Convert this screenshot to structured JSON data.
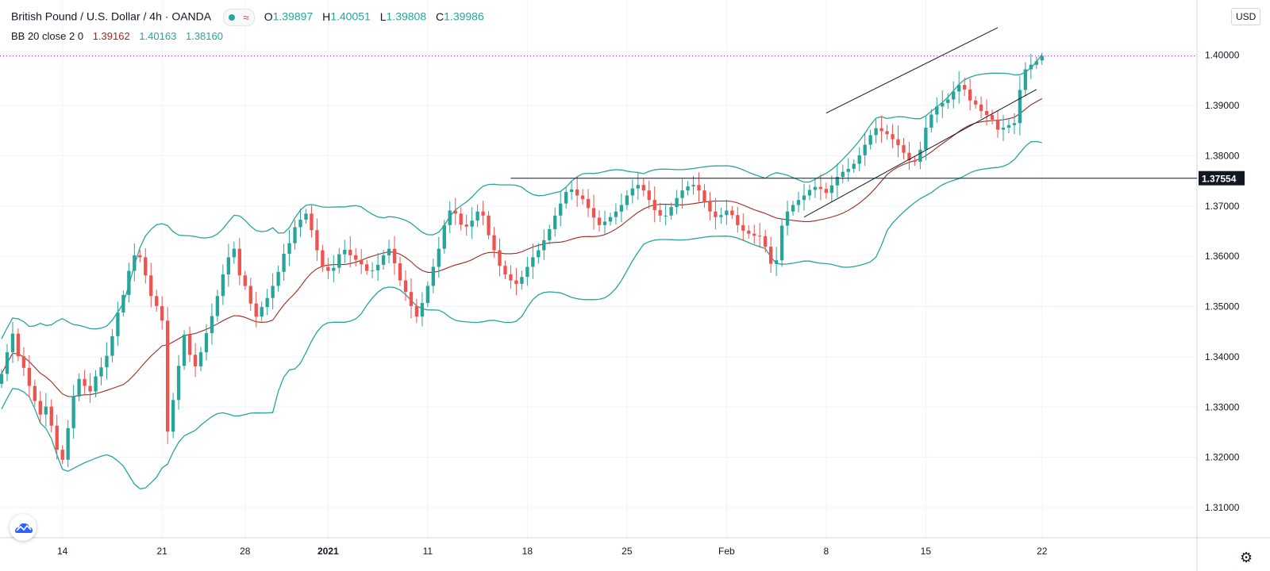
{
  "header": {
    "symbol": "British Pound / U.S. Dollar",
    "interval": "4h",
    "exchange": "OANDA",
    "open_label": "O",
    "open": "1.39897",
    "high_label": "H",
    "high": "1.40051",
    "low_label": "L",
    "low": "1.39808",
    "close_label": "C",
    "close": "1.39986"
  },
  "indicator": {
    "name": "BB 20 close 2 0",
    "basis": "1.39162",
    "upper": "1.40163",
    "lower": "1.38160"
  },
  "currency_label": "USD",
  "colors": {
    "up": "#26a69a",
    "down": "#ef5350",
    "bb_band": "#26a69a",
    "bb_basis": "#9c2b1a",
    "trendline": "#131722",
    "last_price_line": "#9c27b0"
  },
  "chart_data": {
    "type": "candlestick",
    "title": "British Pound / U.S. Dollar · 4h · OANDA",
    "ylim": [
      1.304,
      1.411
    ],
    "price_ticks": [
      "1.31000",
      "1.32000",
      "1.33000",
      "1.34000",
      "1.35000",
      "1.36000",
      "1.37000",
      "1.38000",
      "1.39000",
      "1.40000"
    ],
    "price_tick_values": [
      1.31,
      1.32,
      1.33,
      1.34,
      1.35,
      1.36,
      1.37,
      1.38,
      1.39,
      1.4
    ],
    "x_range_index": [
      0,
      216
    ],
    "time_ticks": [
      {
        "label": "14",
        "index": 11
      },
      {
        "label": "21",
        "index": 29
      },
      {
        "label": "28",
        "index": 44
      },
      {
        "label": "2021",
        "index": 59
      },
      {
        "label": "11",
        "index": 77
      },
      {
        "label": "18",
        "index": 95
      },
      {
        "label": "25",
        "index": 113
      },
      {
        "label": "Feb",
        "index": 131
      },
      {
        "label": "8",
        "index": 149
      },
      {
        "label": "15",
        "index": 167
      },
      {
        "label": "22",
        "index": 188
      }
    ],
    "close_series": [
      1.3366,
      1.3409,
      1.3446,
      1.3401,
      1.3378,
      1.3342,
      1.3312,
      1.3285,
      1.3301,
      1.3263,
      1.3215,
      1.3195,
      1.3258,
      1.3321,
      1.3356,
      1.3342,
      1.3331,
      1.3361,
      1.3379,
      1.3402,
      1.3441,
      1.3488,
      1.3523,
      1.3571,
      1.3602,
      1.3598,
      1.3562,
      1.3521,
      1.3501,
      1.3472,
      1.3251,
      1.3314,
      1.3382,
      1.3444,
      1.3404,
      1.3381,
      1.3409,
      1.3447,
      1.3481,
      1.3521,
      1.3564,
      1.3598,
      1.3615,
      1.3562,
      1.3541,
      1.3506,
      1.348,
      1.3499,
      1.3517,
      1.3541,
      1.3569,
      1.3605,
      1.3626,
      1.3658,
      1.3673,
      1.3685,
      1.3652,
      1.3612,
      1.3579,
      1.3571,
      1.3577,
      1.3604,
      1.3613,
      1.3602,
      1.3593,
      1.3584,
      1.3571,
      1.3572,
      1.3583,
      1.3602,
      1.3615,
      1.3586,
      1.3552,
      1.3529,
      1.3501,
      1.348,
      1.3507,
      1.3541,
      1.3579,
      1.3615,
      1.3662,
      1.3691,
      1.3685,
      1.3663,
      1.3659,
      1.3671,
      1.3689,
      1.3681,
      1.3642,
      1.3612,
      1.3581,
      1.3564,
      1.3552,
      1.3545,
      1.3559,
      1.3579,
      1.3598,
      1.3612,
      1.3632,
      1.3654,
      1.3681,
      1.3705,
      1.3728,
      1.3733,
      1.3721,
      1.3714,
      1.3696,
      1.3677,
      1.3662,
      1.3669,
      1.3678,
      1.3689,
      1.3702,
      1.3721,
      1.3735,
      1.3742,
      1.3731,
      1.3712,
      1.3692,
      1.3681,
      1.3681,
      1.3698,
      1.3716,
      1.3731,
      1.3739,
      1.3742,
      1.3731,
      1.3708,
      1.3689,
      1.3678,
      1.3682,
      1.3691,
      1.3682,
      1.3662,
      1.3651,
      1.3645,
      1.3641,
      1.364,
      1.3619,
      1.3585,
      1.3592,
      1.3661,
      1.3689,
      1.3702,
      1.3712,
      1.3721,
      1.3732,
      1.3738,
      1.3734,
      1.3726,
      1.3741,
      1.3758,
      1.3768,
      1.3774,
      1.3784,
      1.3801,
      1.3822,
      1.3841,
      1.3855,
      1.3849,
      1.3843,
      1.3833,
      1.3821,
      1.3806,
      1.3791,
      1.3788,
      1.3812,
      1.3856,
      1.3882,
      1.3898,
      1.3905,
      1.3912,
      1.3928,
      1.3941,
      1.3932,
      1.391,
      1.3902,
      1.3889,
      1.3881,
      1.3872,
      1.3852,
      1.3856,
      1.3861,
      1.3865,
      1.3931,
      1.3972,
      1.3981,
      1.3988,
      1.3999
    ],
    "bollinger": {
      "length": 20,
      "source": "close",
      "mult": 2,
      "offset": 0
    },
    "support_level": 1.37554,
    "support_label": "1.37554",
    "last_price": 1.39986
  }
}
